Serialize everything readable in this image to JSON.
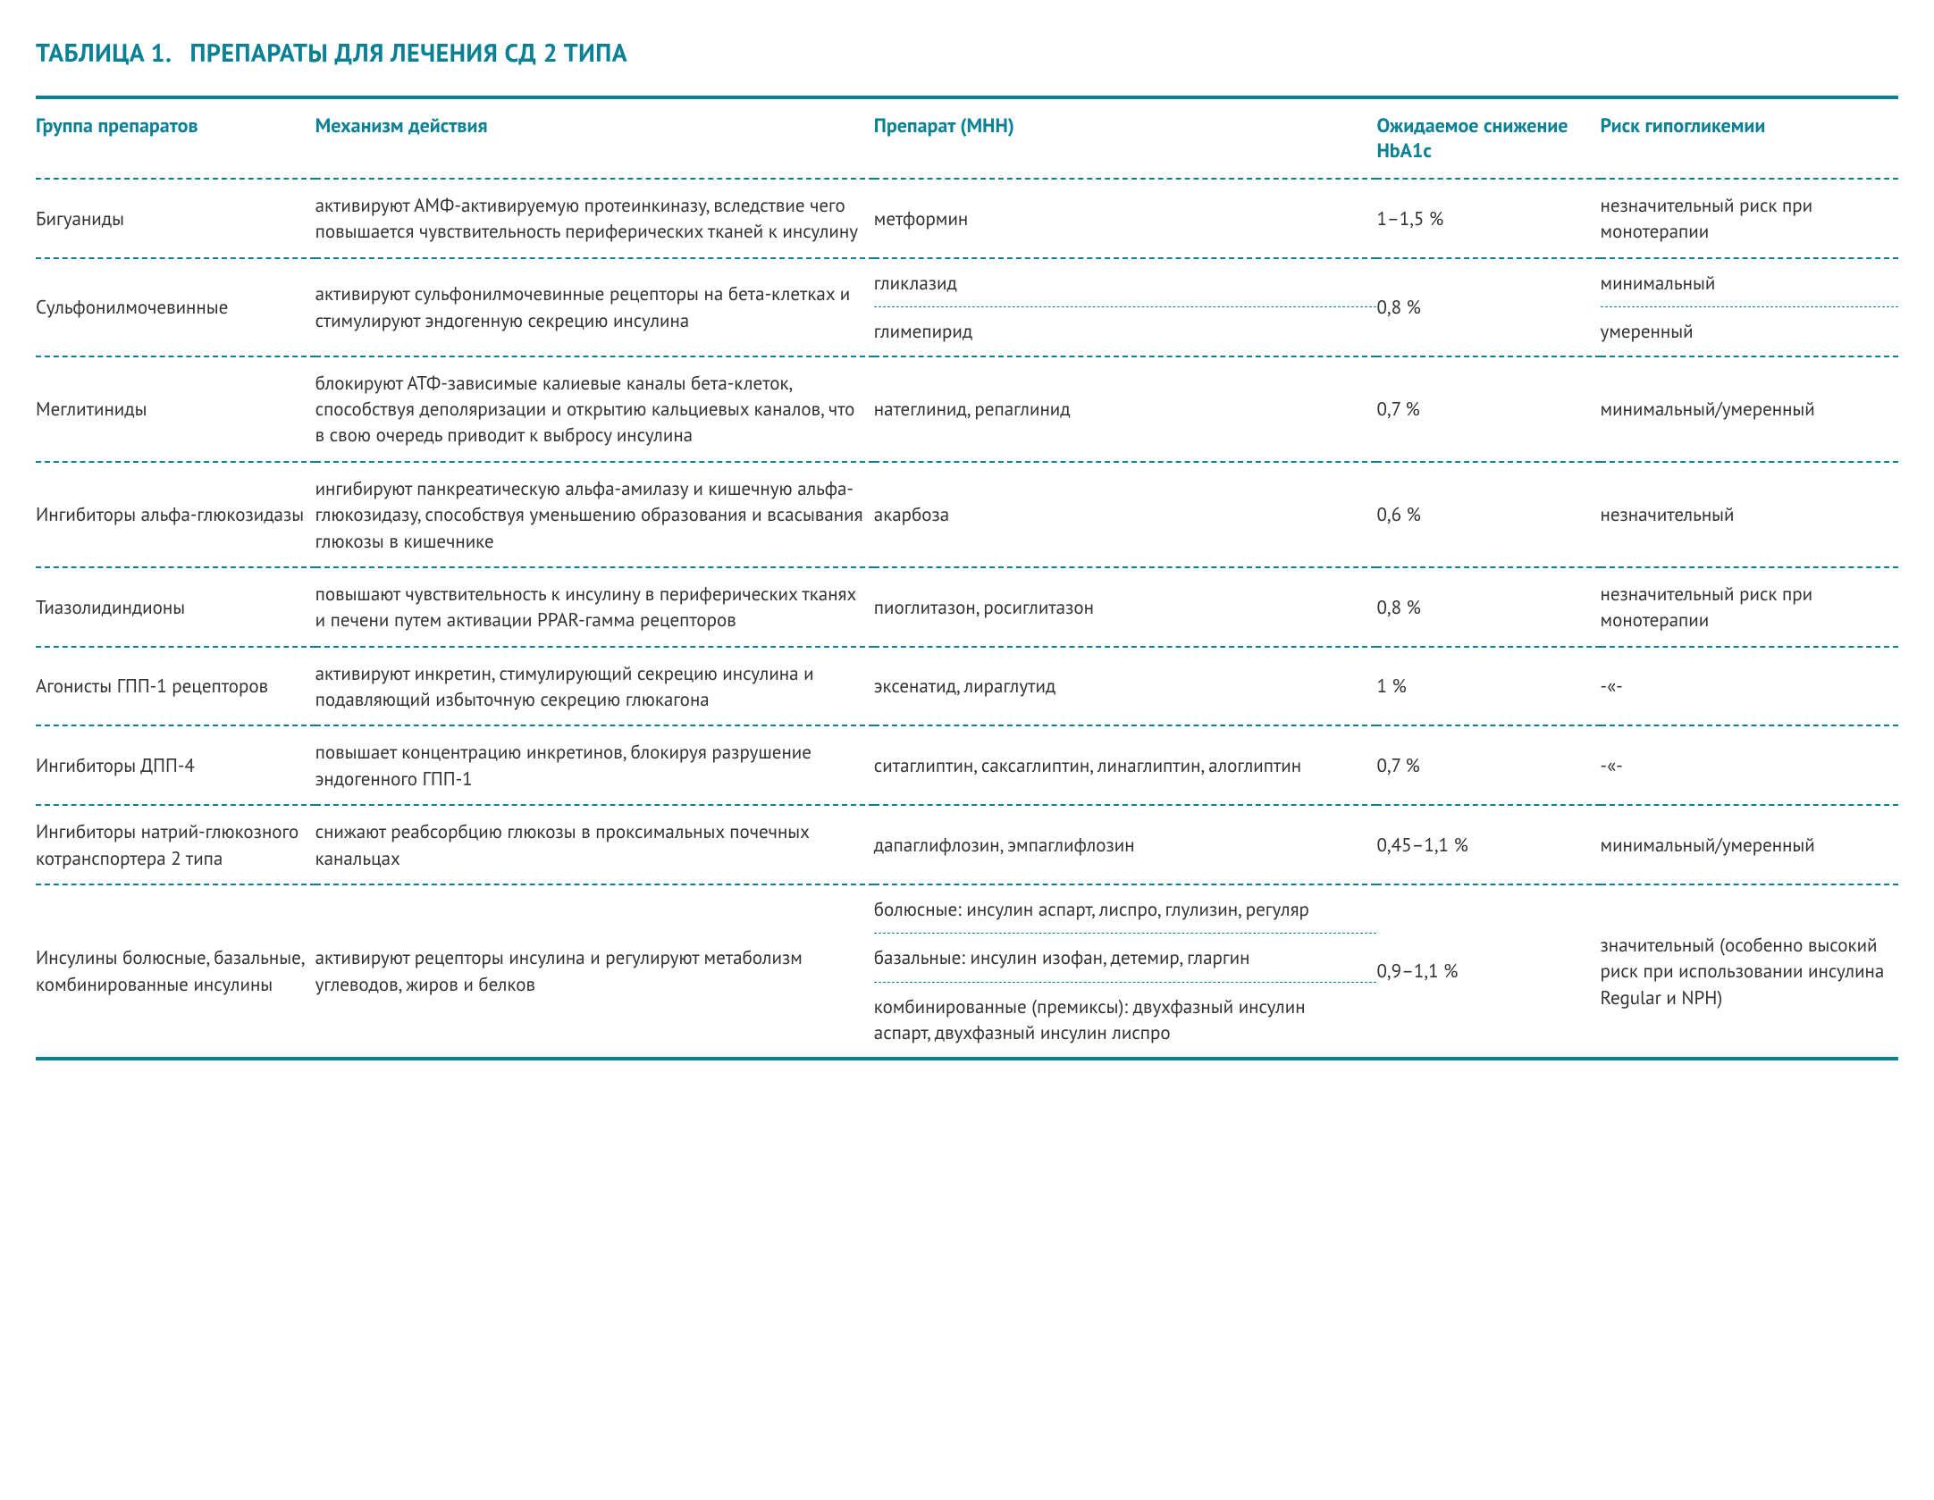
{
  "title": "ТАБЛИЦА 1.  ПРЕПАРАТЫ ДЛЯ ЛЕЧЕНИЯ СД 2 ТИПА",
  "colors": {
    "accent": "#0a8094",
    "text": "#333333",
    "background": "#ffffff"
  },
  "columns": [
    "Группа препаратов",
    "Механизм действия",
    "Препарат (МНН)",
    "Ожидаемое сни­жение HbA1c",
    "Риск гипогликемии"
  ],
  "rows": [
    {
      "group": "Бигуаниды",
      "mechanism": "активируют АМФ-активируемую протеинкиназу, вследствие чего повышается чувствительность пери­ферических тканей к инсулину",
      "drug": "метформин",
      "hba": "1–1,5 %",
      "risk": "незначительный риск при монотерапии"
    },
    {
      "group": "Сульфонилмоче­винные",
      "mechanism": "активируют сульфонилмочевинные рецепторы на бета-клетках и стимулируют эндогенную секрецию инсулина",
      "drug_sub": [
        "гликлазид",
        "глимепирид"
      ],
      "hba": "0,8 %",
      "risk_sub": [
        "минимальный",
        "умеренный"
      ]
    },
    {
      "group": "Меглитиниды",
      "mechanism": "блокируют АТФ-зависимые калиевые каналы бета-клеток, способствуя деполяризации и открытию кальциевых каналов, что в свою очередь приводит к выбросу инсулина",
      "drug": "натеглинид, репаглинид",
      "hba": "0,7 %",
      "risk": "минимальный/умеренный"
    },
    {
      "group": "Ингибиторы альфа-глюкозидазы",
      "mechanism": "ингибируют панкреатическую альфа-амилазу и ки­шечную альфа-глюкозидазу, способствуя уменьше­нию образования и всасывания глюкозы в кишечнике",
      "drug": "акарбоза",
      "hba": "0,6 %",
      "risk": "незначительный"
    },
    {
      "group": "Тиазолидиндионы",
      "mechanism": "повышают чувствительность к инсулину в перифери­ческих тканях и печени путем активации PPAR-гамма рецепторов",
      "drug": "пиоглитазон, росиглитазон",
      "hba": "0,8 %",
      "risk": "незначительный риск при монотерапии"
    },
    {
      "group": "Агонисты ГПП-1 рецепторов",
      "mechanism": "активируют инкретин, стимулирующий секрецию инсулина и подавляющий избыточную секрецию глюкагона",
      "drug": "эксенатид, лираглутид",
      "hba": "1 %",
      "risk": "-«-"
    },
    {
      "group": "Ингибиторы ДПП-4",
      "mechanism": "повышает концентрацию инкретинов, блокируя разрушение эндогенного ГПП-1",
      "drug": "ситаглиптин, саксаглиптин, линаглиптин, алоглиптин",
      "hba": "0,7 %",
      "risk": "-«-"
    },
    {
      "group": "Ингибиторы натрий-глюкозного котранспортера 2 типа",
      "mechanism": "снижают реабсорбцию глюкозы в проксимальных почечных канальцах",
      "drug": "дапаглифлозин, эмпаглифлозин",
      "hba": "0,45–1,1 %",
      "risk": "минимальный/умеренный"
    },
    {
      "group": "Инсулины болюс­ные, базальные, комбинированные инсулины",
      "mechanism": "активируют рецепторы инсулина и регулируют метаболизм углеводов, жиров и белков",
      "drug_sub": [
        "болюсные: инсулин аспарт, лиспро, глулизин, регуляр",
        "базальные: инсулин изофан, детемир, гларгин",
        "комбинированные (премиксы): двухфазный инсулин аспарт, двухфазный инсулин лиспро"
      ],
      "hba": "0,9–1,1 %",
      "risk": "значительный (особенно высокий риск при исполь­зовании инсулина Regular и NPH)"
    }
  ]
}
